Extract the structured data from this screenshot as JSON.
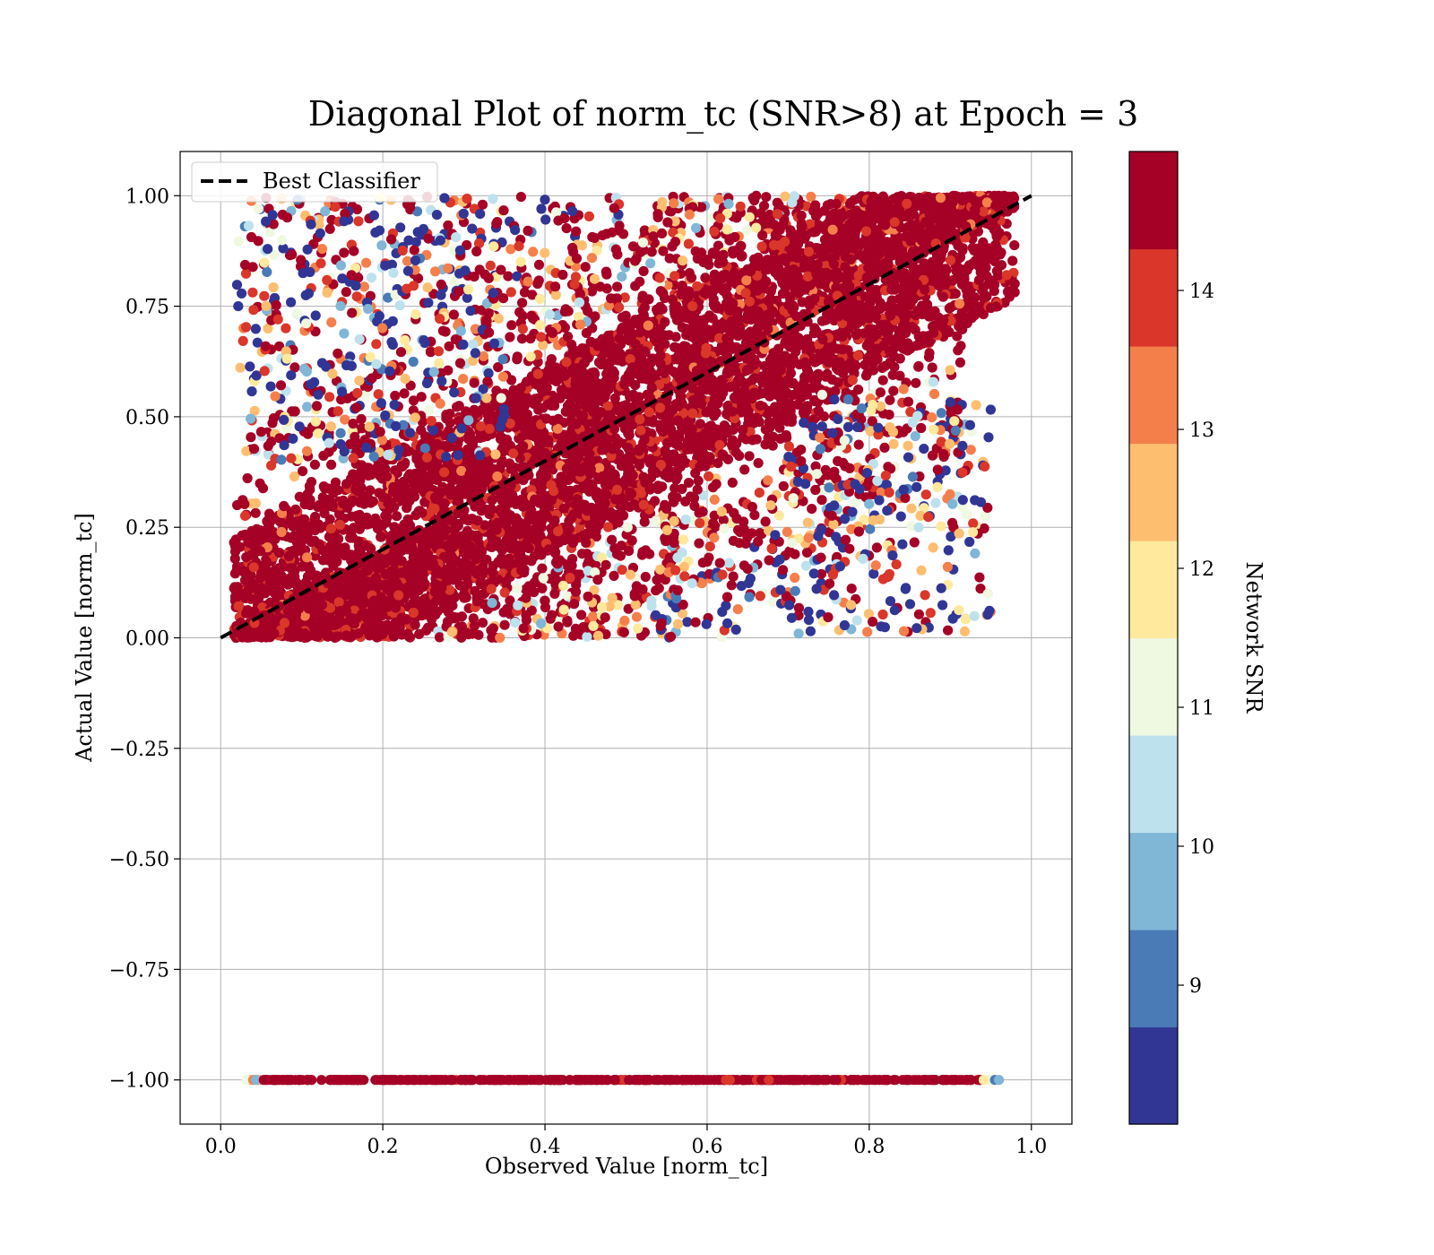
{
  "chart_data": {
    "type": "scatter",
    "title": "Diagonal Plot of norm_tc (SNR>8) at Epoch = 3",
    "xlabel": "Observed Value [norm_tc]",
    "ylabel": "Actual Value [norm_tc]",
    "xlim": [
      -0.05,
      1.05
    ],
    "ylim": [
      -1.1,
      1.1
    ],
    "x_ticks": [
      "0.0",
      "0.2",
      "0.4",
      "0.6",
      "0.8",
      "1.0"
    ],
    "x_tick_values": [
      0.0,
      0.2,
      0.4,
      0.6,
      0.8,
      1.0
    ],
    "y_ticks": [
      "−1.00",
      "−0.75",
      "−0.50",
      "−0.25",
      "0.00",
      "0.25",
      "0.50",
      "0.75",
      "1.00"
    ],
    "y_tick_values": [
      -1.0,
      -0.75,
      -0.5,
      -0.25,
      0.0,
      0.25,
      0.5,
      0.75,
      1.0
    ],
    "grid": true,
    "legend": {
      "position": "top-left",
      "entries": [
        "Best Classifier"
      ]
    },
    "reference_line": {
      "name": "Best Classifier",
      "style": "dashed",
      "color": "#000000",
      "x": [
        0.0,
        1.0
      ],
      "y": [
        0.0,
        1.0
      ]
    },
    "point_groups": [
      {
        "name": "cluster above diagonal",
        "region": "0 < x < 0.97, x < y < 1.0",
        "dominant_snr": 14.5
      },
      {
        "name": "cluster below diagonal",
        "region": "0.02 < x < 0.92, 0 < y < x",
        "dominant_snr": 14.5
      },
      {
        "name": "no-merger band",
        "x_range": [
          0.03,
          0.96
        ],
        "y": -1.0,
        "dominant_snr": 14.5
      }
    ],
    "colorbar": {
      "label": "Network SNR",
      "range": [
        8.0,
        15.0
      ],
      "ticks": [
        "9",
        "10",
        "11",
        "12",
        "13",
        "14"
      ],
      "tick_values": [
        9,
        10,
        11,
        12,
        13,
        14
      ],
      "colors": [
        "#313695",
        "#4a7bb7",
        "#80b6d6",
        "#bde2ee",
        "#eff8e0",
        "#fee99d",
        "#fdbe70",
        "#f57f4b",
        "#da362a",
        "#a50026"
      ]
    }
  }
}
